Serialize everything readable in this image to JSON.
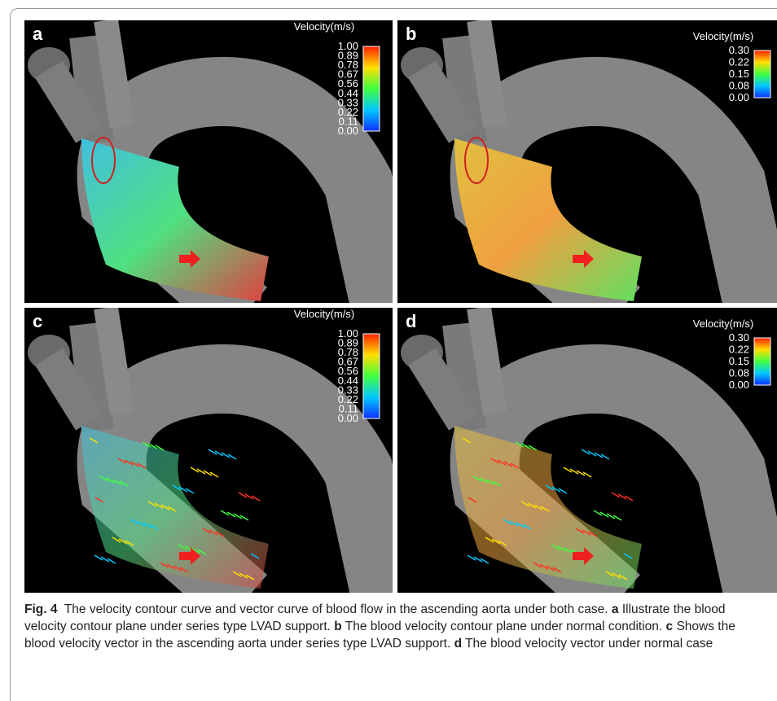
{
  "figure": {
    "panels": [
      {
        "label": "a",
        "legend_title": "Velocity(m/s)",
        "ticks": [
          "1.00",
          "0.89",
          "0.78",
          "0.67",
          "0.56",
          "0.44",
          "0.33",
          "0.22",
          "0.11",
          "0.00"
        ]
      },
      {
        "label": "b",
        "legend_title": "Velocity(m/s)",
        "ticks": [
          "0.30",
          "0.22",
          "0.15",
          "0.08",
          "0.00"
        ]
      },
      {
        "label": "c",
        "legend_title": "Velocity(m/s)",
        "ticks": [
          "1.00",
          "0.89",
          "0.78",
          "0.67",
          "0.56",
          "0.44",
          "0.33",
          "0.22",
          "0.11",
          "0.00"
        ]
      },
      {
        "label": "d",
        "legend_title": "Velocity(m/s)",
        "ticks": [
          "0.30",
          "0.22",
          "0.15",
          "0.08",
          "0.00"
        ]
      }
    ],
    "caption": {
      "label": "Fig. 4",
      "text": "The velocity contour curve and vector curve of blood flow in the ascending aorta under both case.",
      "parts": [
        {
          "label": "a",
          "text": "Illustrate the blood velocity contour plane under series type LVAD support."
        },
        {
          "label": "b",
          "text": "The blood velocity contour plane under normal condition."
        },
        {
          "label": "c",
          "text": "Shows the blood velocity vector in the ascending aorta under series type LVAD support."
        },
        {
          "label": "d",
          "text": "The blood velocity vector under normal case"
        }
      ]
    }
  }
}
